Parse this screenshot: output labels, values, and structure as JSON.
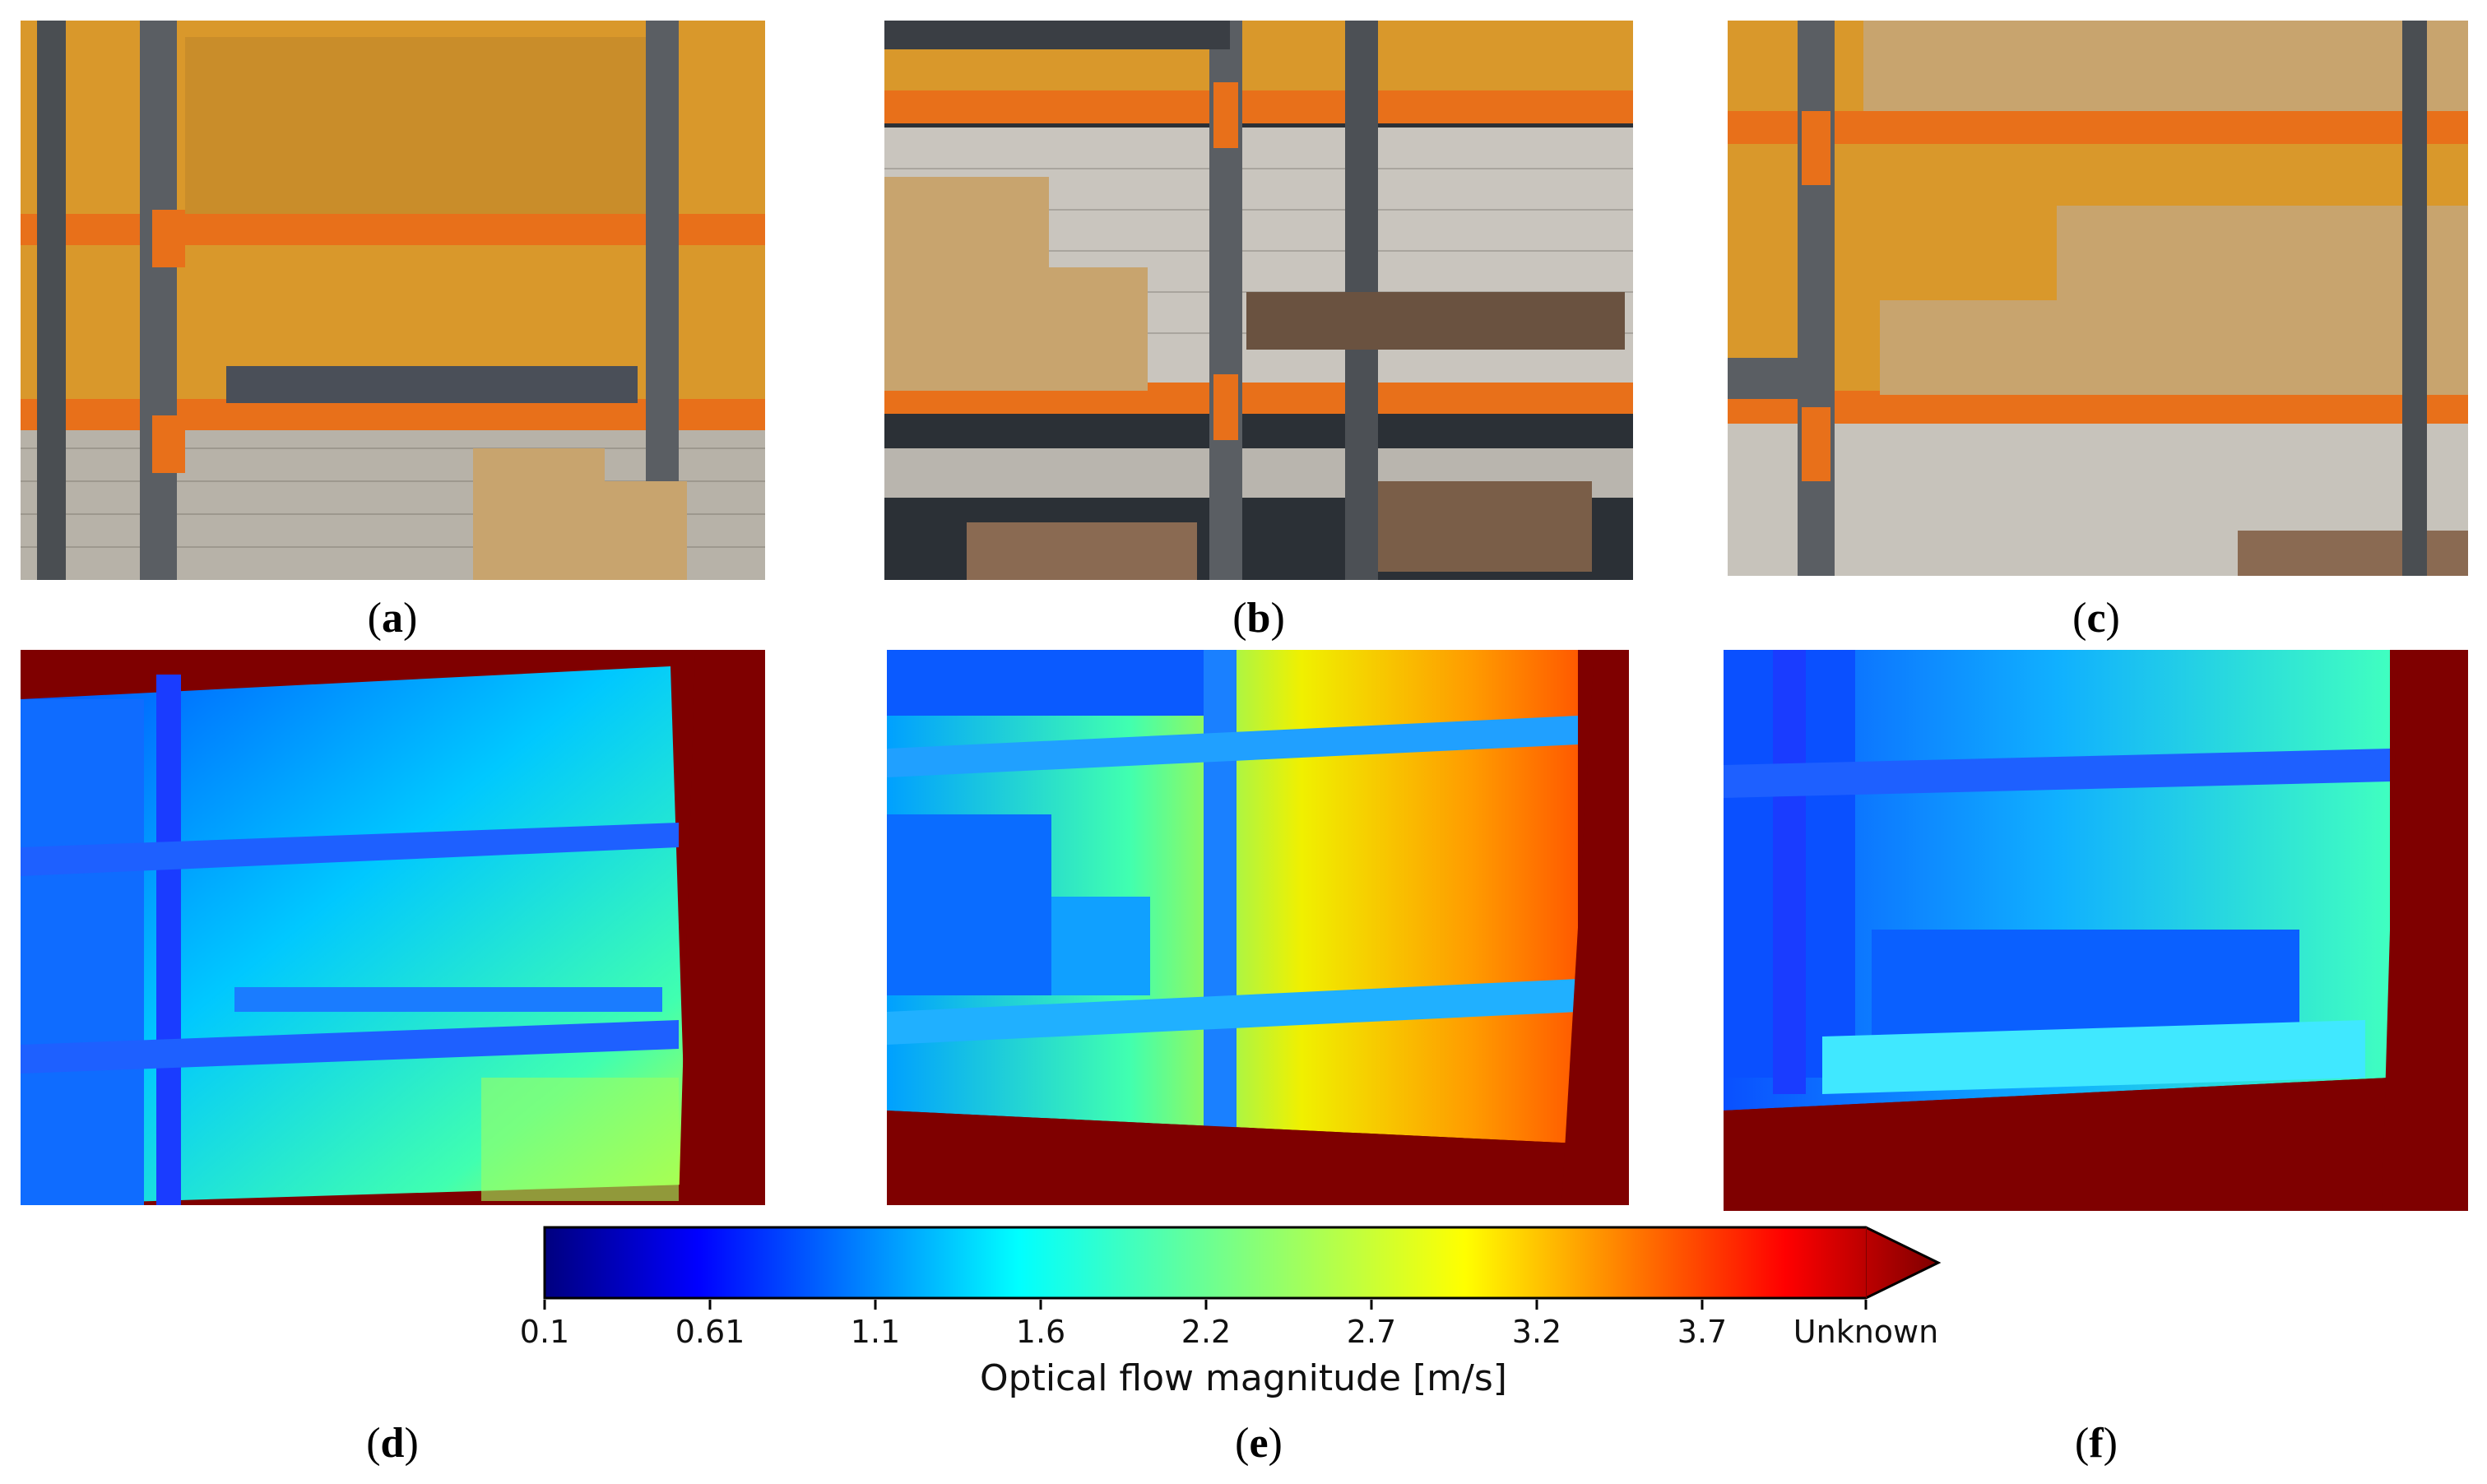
{
  "panel_labels": [
    "a",
    "b",
    "c",
    "d",
    "e",
    "f"
  ],
  "colorbar": {
    "title": "Optical flow magnitude [m/s]",
    "ticks": [
      "0.1",
      "0.61",
      "1.1",
      "1.6",
      "2.2",
      "2.7",
      "3.2",
      "3.7",
      "Unknown"
    ],
    "colormap": "jet",
    "unknown_color": "#7f0000"
  },
  "colors": {
    "shelf_orange": "#e8701a",
    "wall_yellow": "#d9982b",
    "box_tan": "#c8a46e",
    "pallet_gray": "#4a4f58",
    "floor_dark": "#2b3036"
  }
}
